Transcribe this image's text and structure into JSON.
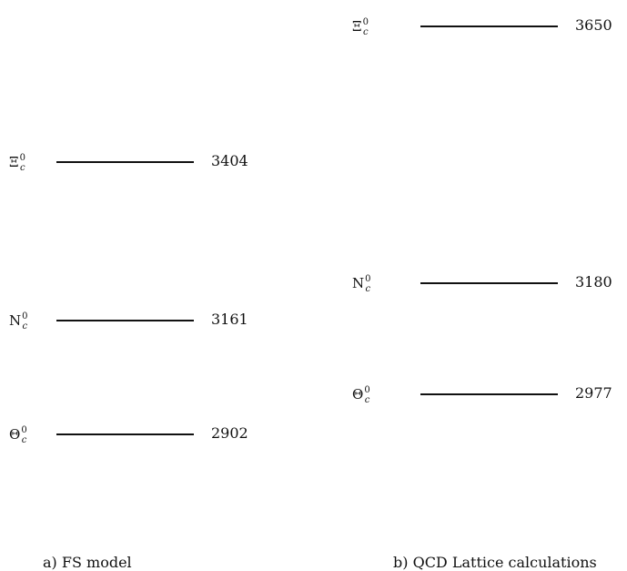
{
  "panels": [
    {
      "caption": "a) FS model",
      "levels": [
        {
          "symbol": "Ξ",
          "sup": "0",
          "sub": "c",
          "mass": 3404
        },
        {
          "symbol": "N",
          "sup": "0",
          "sub": "c",
          "mass": 3161
        },
        {
          "symbol": "Θ",
          "sup": "0",
          "sub": "c",
          "mass": 2902
        }
      ]
    },
    {
      "caption": "b) QCD Lattice calculations",
      "levels": [
        {
          "symbol": "Ξ",
          "sup": "0",
          "sub": "c",
          "mass": 3650
        },
        {
          "symbol": "N",
          "sup": "0",
          "sub": "c",
          "mass": 3180
        },
        {
          "symbol": "Θ",
          "sup": "0",
          "sub": "c",
          "mass": 2977
        }
      ]
    }
  ]
}
